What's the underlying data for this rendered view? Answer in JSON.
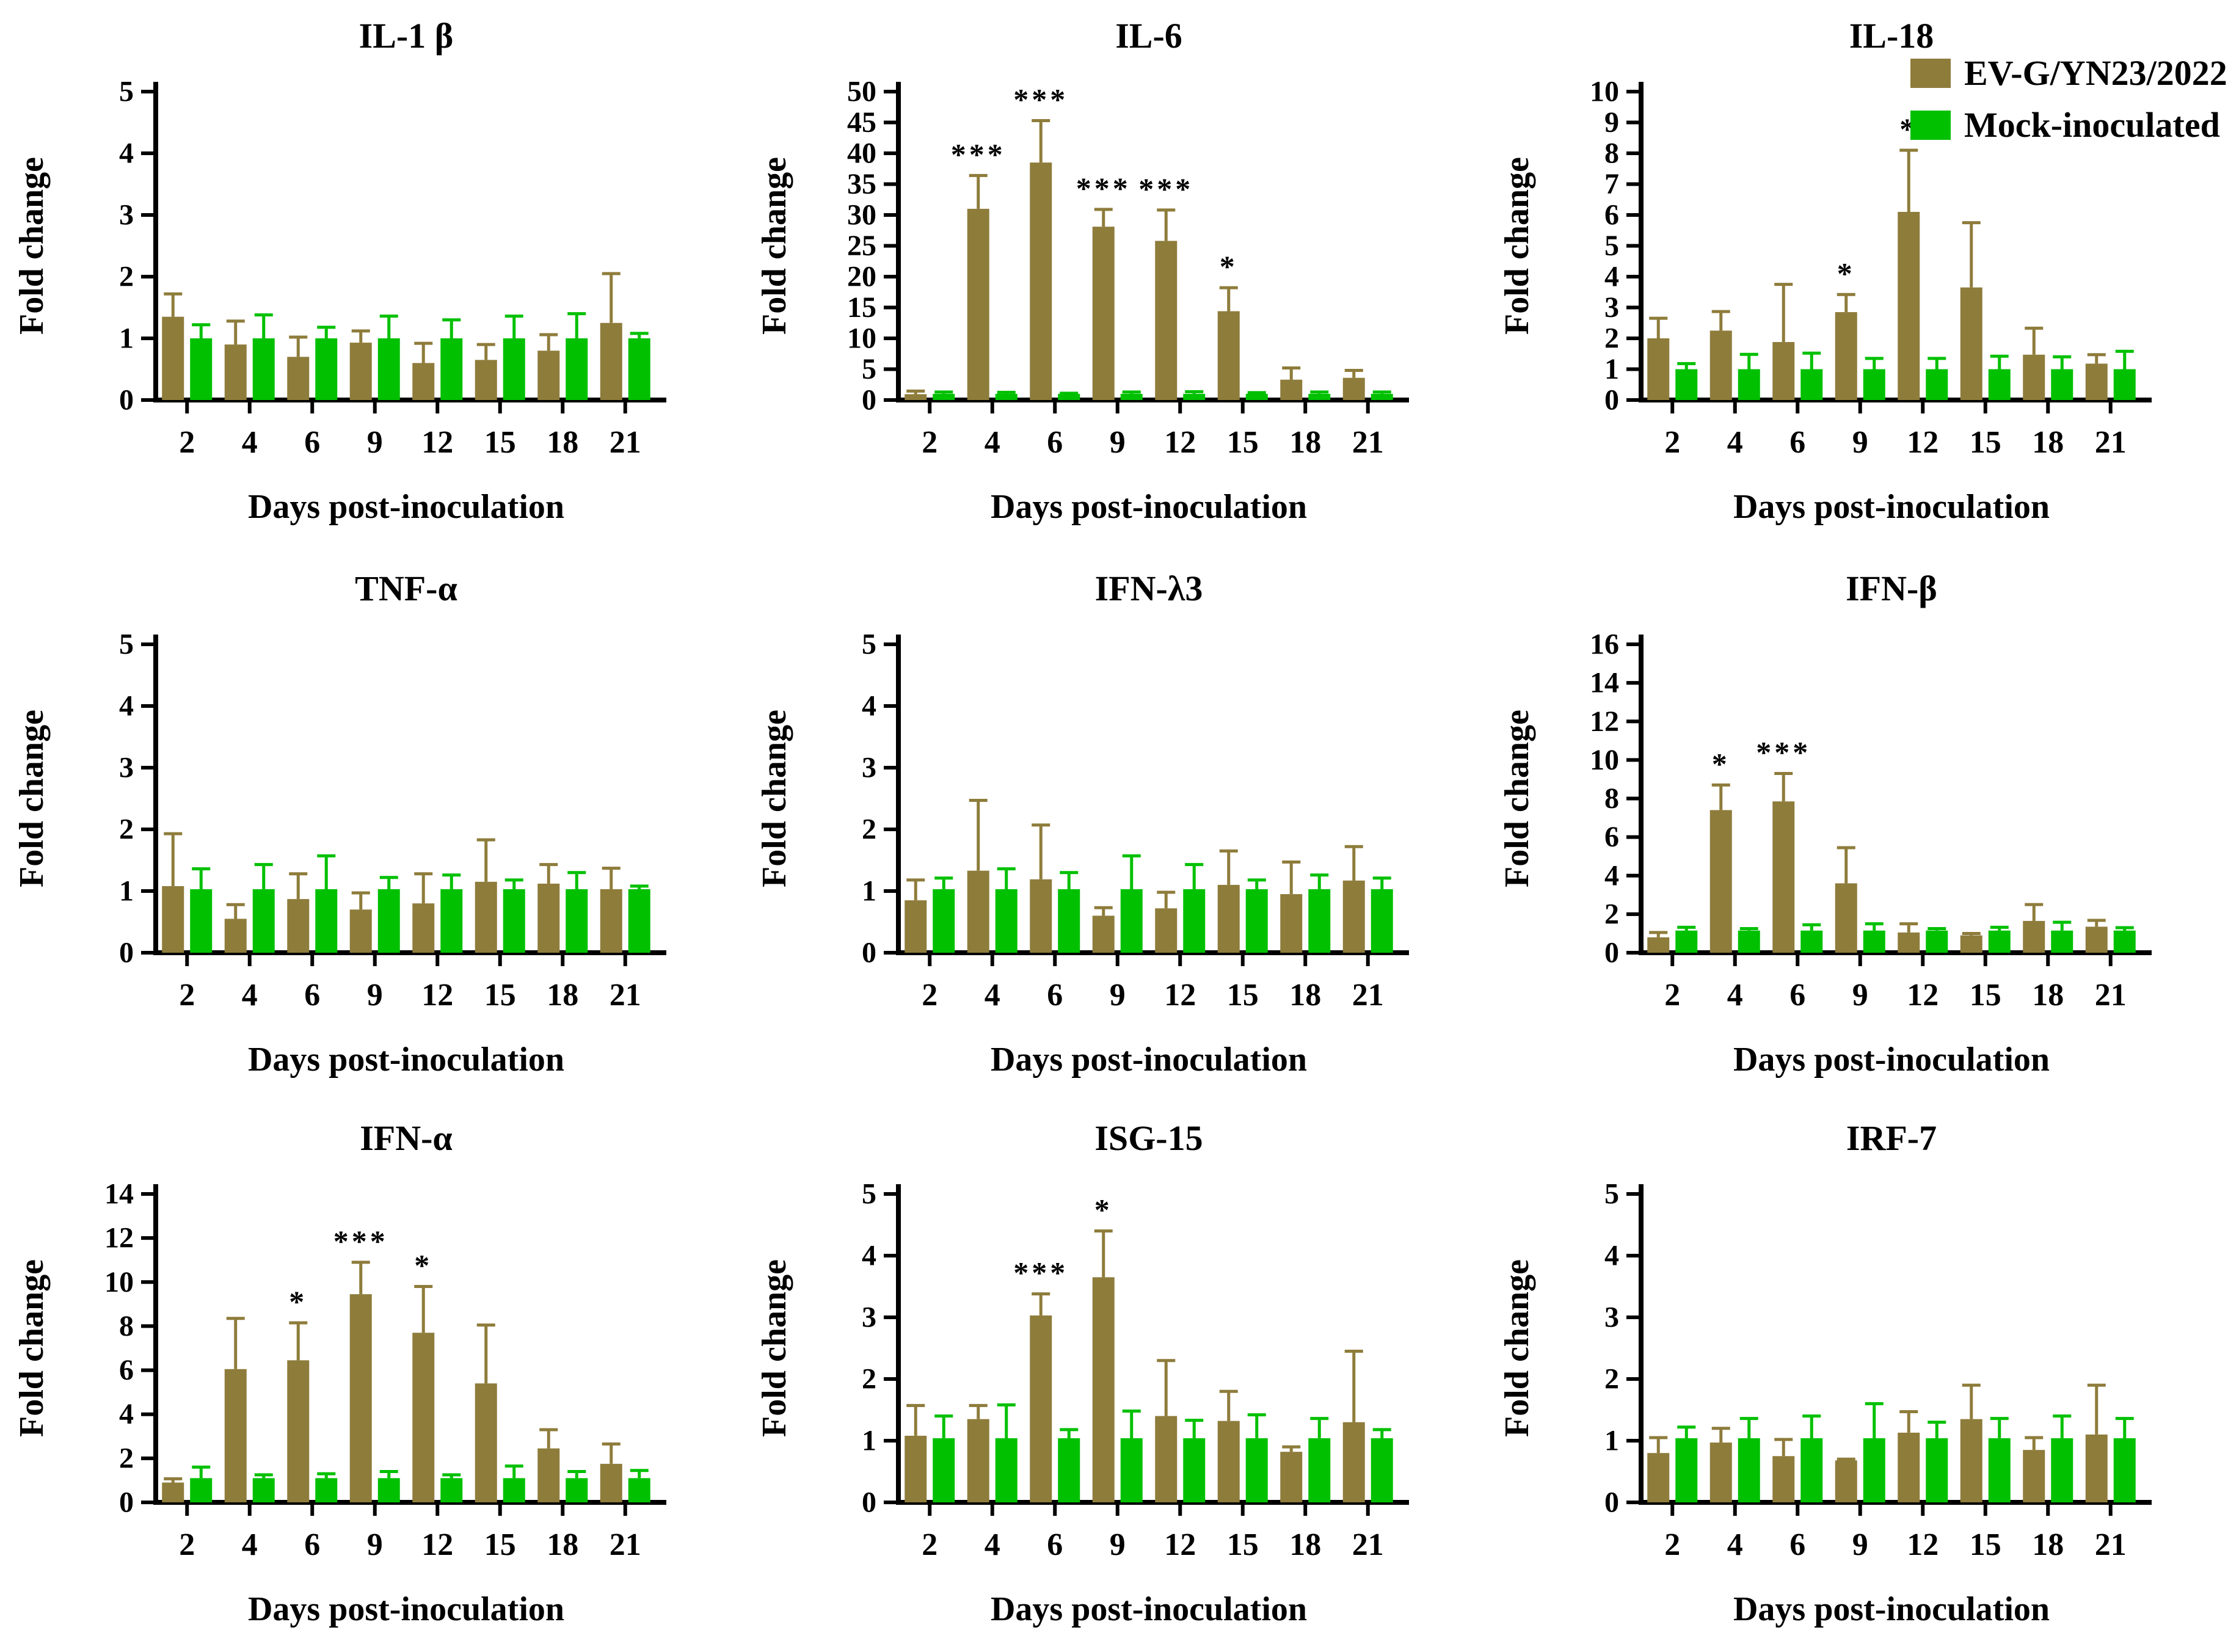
{
  "figure": {
    "xlabel": "Days post-inoculation",
    "ylabel": "Fold change",
    "categories": [
      "2",
      "4",
      "6",
      "9",
      "12",
      "15",
      "18",
      "21"
    ]
  },
  "legend": {
    "items": [
      {
        "label": "EV-G/YN23/2022",
        "color": "#8E7C3B"
      },
      {
        "label": "Mock-inoculated",
        "color": "#00C000"
      }
    ]
  },
  "colors": {
    "ev_bar": "#8E7C3B",
    "mock_bar": "#00C000",
    "axis": "#000000",
    "significance": "#000000",
    "background": "#ffffff"
  },
  "chart_data": [
    {
      "type": "bar",
      "title": "IL-1 β",
      "xlabel": "Days post-inoculation",
      "ylabel": "Fold change",
      "categories": [
        "2",
        "4",
        "6",
        "9",
        "12",
        "15",
        "18",
        "21"
      ],
      "ylim": [
        0,
        5
      ],
      "ytick_step": 1,
      "series": [
        {
          "name": "EV-G/YN23/2022",
          "color": "#8E7C3B",
          "values": [
            1.35,
            0.9,
            0.7,
            0.93,
            0.6,
            0.65,
            0.8,
            1.25
          ],
          "error_top": [
            1.72,
            1.28,
            1.02,
            1.12,
            0.92,
            0.9,
            1.06,
            2.05
          ]
        },
        {
          "name": "Mock-inoculated",
          "color": "#00C000",
          "values": [
            1.0,
            1.0,
            1.0,
            1.0,
            1.0,
            1.0,
            1.0,
            1.0
          ],
          "error_top": [
            1.22,
            1.38,
            1.18,
            1.36,
            1.3,
            1.36,
            1.4,
            1.08
          ]
        }
      ],
      "significance": [
        "",
        "",
        "",
        "",
        "",
        "",
        "",
        ""
      ]
    },
    {
      "type": "bar",
      "title": "IL-6",
      "xlabel": "Days post-inoculation",
      "ylabel": "Fold change",
      "categories": [
        "2",
        "4",
        "6",
        "9",
        "12",
        "15",
        "18",
        "21"
      ],
      "ylim": [
        0,
        50
      ],
      "ytick_step": 5,
      "series": [
        {
          "name": "EV-G/YN23/2022",
          "color": "#8E7C3B",
          "values": [
            0.95,
            31.0,
            38.5,
            28.1,
            25.8,
            14.4,
            3.3,
            3.6
          ],
          "error_top": [
            1.45,
            36.4,
            45.3,
            30.9,
            30.8,
            18.2,
            5.2,
            4.8
          ]
        },
        {
          "name": "Mock-inoculated",
          "color": "#00C000",
          "values": [
            1.0,
            1.0,
            1.0,
            1.0,
            1.0,
            1.0,
            1.0,
            1.0
          ],
          "error_top": [
            1.3,
            1.25,
            1.1,
            1.3,
            1.35,
            1.2,
            1.3,
            1.3
          ]
        }
      ],
      "significance": [
        "",
        "***",
        "***",
        "***",
        "***",
        "*",
        "",
        ""
      ]
    },
    {
      "type": "bar",
      "title": "IL-18",
      "xlabel": "Days post-inoculation",
      "ylabel": "Fold change",
      "categories": [
        "2",
        "4",
        "6",
        "9",
        "12",
        "15",
        "18",
        "21"
      ],
      "ylim": [
        0,
        10
      ],
      "ytick_step": 1,
      "series": [
        {
          "name": "EV-G/YN23/2022",
          "color": "#8E7C3B",
          "values": [
            2.0,
            2.25,
            1.88,
            2.85,
            6.1,
            3.65,
            1.47,
            1.18
          ],
          "error_top": [
            2.65,
            2.87,
            3.75,
            3.42,
            8.1,
            5.75,
            2.33,
            1.47
          ]
        },
        {
          "name": "Mock-inoculated",
          "color": "#00C000",
          "values": [
            1.0,
            1.0,
            1.0,
            1.0,
            1.0,
            1.0,
            1.0,
            1.0
          ],
          "error_top": [
            1.18,
            1.48,
            1.52,
            1.35,
            1.35,
            1.42,
            1.4,
            1.58
          ]
        }
      ],
      "significance": [
        "",
        "",
        "",
        "*",
        "*",
        "",
        "",
        ""
      ]
    },
    {
      "type": "bar",
      "title": "TNF-α",
      "xlabel": "Days post-inoculation",
      "ylabel": "Fold change",
      "categories": [
        "2",
        "4",
        "6",
        "9",
        "12",
        "15",
        "18",
        "21"
      ],
      "ylim": [
        0,
        5
      ],
      "ytick_step": 1,
      "series": [
        {
          "name": "EV-G/YN23/2022",
          "color": "#8E7C3B",
          "values": [
            1.08,
            0.55,
            0.87,
            0.7,
            0.8,
            1.15,
            1.12,
            1.03
          ],
          "error_top": [
            1.93,
            0.78,
            1.28,
            0.97,
            1.28,
            1.83,
            1.43,
            1.37
          ]
        },
        {
          "name": "Mock-inoculated",
          "color": "#00C000",
          "values": [
            1.03,
            1.03,
            1.03,
            1.03,
            1.03,
            1.03,
            1.03,
            1.03
          ],
          "error_top": [
            1.36,
            1.43,
            1.57,
            1.22,
            1.26,
            1.18,
            1.3,
            1.08
          ]
        }
      ],
      "significance": [
        "",
        "",
        "",
        "",
        "",
        "",
        "",
        ""
      ]
    },
    {
      "type": "bar",
      "title": "IFN-λ3",
      "xlabel": "Days post-inoculation",
      "ylabel": "Fold change",
      "categories": [
        "2",
        "4",
        "6",
        "9",
        "12",
        "15",
        "18",
        "21"
      ],
      "ylim": [
        0,
        5
      ],
      "ytick_step": 1,
      "series": [
        {
          "name": "EV-G/YN23/2022",
          "color": "#8E7C3B",
          "values": [
            0.85,
            1.33,
            1.19,
            0.6,
            0.72,
            1.1,
            0.95,
            1.17
          ],
          "error_top": [
            1.18,
            2.47,
            2.07,
            0.73,
            0.98,
            1.65,
            1.47,
            1.72
          ]
        },
        {
          "name": "Mock-inoculated",
          "color": "#00C000",
          "values": [
            1.03,
            1.03,
            1.03,
            1.03,
            1.03,
            1.03,
            1.03,
            1.03
          ],
          "error_top": [
            1.21,
            1.36,
            1.3,
            1.57,
            1.43,
            1.18,
            1.26,
            1.21
          ]
        }
      ],
      "significance": [
        "",
        "",
        "",
        "",
        "",
        "",
        "",
        ""
      ]
    },
    {
      "type": "bar",
      "title": "IFN-β",
      "xlabel": "Days post-inoculation",
      "ylabel": "Fold change",
      "categories": [
        "2",
        "4",
        "6",
        "9",
        "12",
        "15",
        "18",
        "21"
      ],
      "ylim": [
        0,
        16
      ],
      "ytick_step": 2,
      "series": [
        {
          "name": "EV-G/YN23/2022",
          "color": "#8E7C3B",
          "values": [
            0.8,
            7.4,
            7.85,
            3.6,
            1.05,
            0.9,
            1.65,
            1.35
          ],
          "error_top": [
            1.05,
            8.7,
            9.3,
            5.45,
            1.5,
            1.0,
            2.5,
            1.68
          ]
        },
        {
          "name": "Mock-inoculated",
          "color": "#00C000",
          "values": [
            1.15,
            1.15,
            1.15,
            1.15,
            1.15,
            1.15,
            1.15,
            1.15
          ],
          "error_top": [
            1.32,
            1.25,
            1.45,
            1.5,
            1.25,
            1.32,
            1.58,
            1.3
          ]
        }
      ],
      "significance": [
        "",
        "*",
        "***",
        "",
        "",
        "",
        "",
        ""
      ]
    },
    {
      "type": "bar",
      "title": "IFN-α",
      "xlabel": "Days post-inoculation",
      "ylabel": "Fold change",
      "categories": [
        "2",
        "4",
        "6",
        "9",
        "12",
        "15",
        "18",
        "21"
      ],
      "ylim": [
        0,
        14
      ],
      "ytick_step": 2,
      "series": [
        {
          "name": "EV-G/YN23/2022",
          "color": "#8E7C3B",
          "values": [
            0.9,
            6.05,
            6.45,
            9.45,
            7.7,
            5.4,
            2.45,
            1.75
          ],
          "error_top": [
            1.07,
            8.35,
            8.15,
            10.9,
            9.8,
            8.05,
            3.3,
            2.65
          ]
        },
        {
          "name": "Mock-inoculated",
          "color": "#00C000",
          "values": [
            1.1,
            1.1,
            1.1,
            1.1,
            1.1,
            1.1,
            1.1,
            1.1
          ],
          "error_top": [
            1.6,
            1.25,
            1.3,
            1.4,
            1.25,
            1.65,
            1.4,
            1.45
          ]
        }
      ],
      "significance": [
        "",
        "",
        "*",
        "***",
        "*",
        "",
        "",
        ""
      ]
    },
    {
      "type": "bar",
      "title": "ISG-15",
      "xlabel": "Days post-inoculation",
      "ylabel": "Fold change",
      "categories": [
        "2",
        "4",
        "6",
        "9",
        "12",
        "15",
        "18",
        "21"
      ],
      "ylim": [
        0,
        5
      ],
      "ytick_step": 1,
      "series": [
        {
          "name": "EV-G/YN23/2022",
          "color": "#8E7C3B",
          "values": [
            1.08,
            1.35,
            3.03,
            3.65,
            1.4,
            1.32,
            0.82,
            1.3
          ],
          "error_top": [
            1.57,
            1.57,
            3.38,
            4.4,
            2.3,
            1.8,
            0.9,
            2.45
          ]
        },
        {
          "name": "Mock-inoculated",
          "color": "#00C000",
          "values": [
            1.04,
            1.04,
            1.04,
            1.04,
            1.04,
            1.04,
            1.04,
            1.04
          ],
          "error_top": [
            1.4,
            1.58,
            1.18,
            1.48,
            1.33,
            1.42,
            1.36,
            1.18
          ]
        }
      ],
      "significance": [
        "",
        "",
        "***",
        "*",
        "",
        "",
        "",
        ""
      ]
    },
    {
      "type": "bar",
      "title": "IRF-7",
      "xlabel": "Days post-inoculation",
      "ylabel": "Fold change",
      "categories": [
        "2",
        "4",
        "6",
        "9",
        "12",
        "15",
        "18",
        "21"
      ],
      "ylim": [
        0,
        5
      ],
      "ytick_step": 1,
      "series": [
        {
          "name": "EV-G/YN23/2022",
          "color": "#8E7C3B",
          "values": [
            0.8,
            0.97,
            0.75,
            0.68,
            1.13,
            1.35,
            0.85,
            1.1
          ],
          "error_top": [
            1.05,
            1.2,
            1.02,
            0.7,
            1.47,
            1.9,
            1.05,
            1.9
          ]
        },
        {
          "name": "Mock-inoculated",
          "color": "#00C000",
          "values": [
            1.04,
            1.04,
            1.04,
            1.04,
            1.04,
            1.04,
            1.04,
            1.04
          ],
          "error_top": [
            1.22,
            1.36,
            1.4,
            1.6,
            1.3,
            1.36,
            1.4,
            1.36
          ]
        }
      ],
      "significance": [
        "",
        "",
        "",
        "",
        "",
        "",
        "",
        ""
      ]
    }
  ]
}
